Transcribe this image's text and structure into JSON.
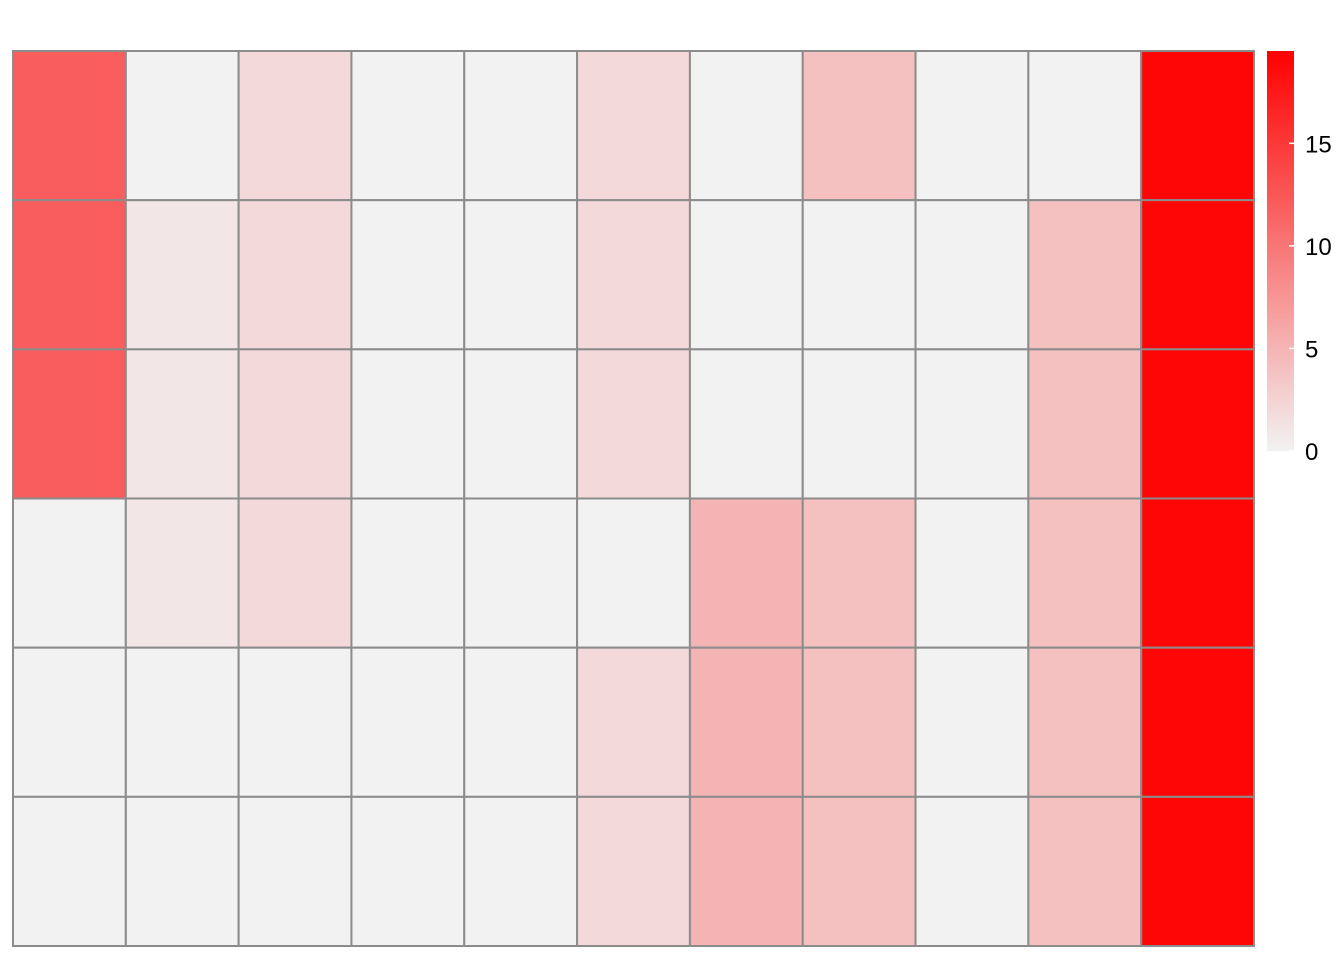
{
  "chart_data": {
    "type": "heatmap",
    "title": "",
    "xlabel": "",
    "ylabel": "",
    "rows": 6,
    "cols": 11,
    "values": [
      [
        12,
        0,
        2,
        0,
        0,
        2,
        0,
        4,
        0,
        0,
        19
      ],
      [
        12,
        1,
        2,
        0,
        0,
        2,
        0,
        0,
        0,
        4,
        19
      ],
      [
        12,
        1,
        2,
        0,
        0,
        2,
        0,
        0,
        0,
        4,
        19
      ],
      [
        0,
        1,
        2,
        0,
        0,
        0,
        5,
        4,
        0,
        4,
        19
      ],
      [
        0,
        0,
        0,
        0,
        0,
        2,
        5,
        4,
        0,
        4,
        19
      ],
      [
        0,
        0,
        0,
        0,
        0,
        2,
        5,
        4,
        0,
        4,
        19
      ]
    ],
    "color_scale": {
      "min": 0,
      "max": 19.5,
      "low_color": "#f2f2f2",
      "high_color": "#ff0000",
      "ticks": [
        0,
        5,
        10,
        15
      ]
    },
    "cell_border_color": "#8c8c8c",
    "legend": "right",
    "grid": true
  }
}
